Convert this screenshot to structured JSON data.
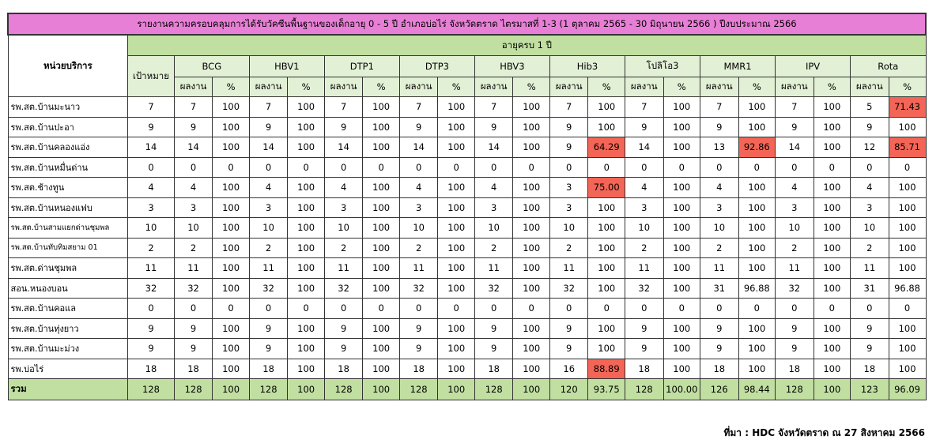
{
  "title": "รายงานความครอบคลุมการได้รับวัคซีนพื้นฐานของเด็กอายุ 0 - 5 ปี อำเภอบ่อไร่ จังหวัดตราด ไตรมาสที่ 1-3 (1 ตุลาคม 2565 - 30 มิถุนายน 2566 ) ปีงบประมาณ 2566",
  "unit_header": "หน่วยบริการ",
  "age_header": "อายุครบ 1 ปี",
  "target_header": "เป้าหมาย",
  "vaccines": [
    "BCG",
    "HBV1",
    "DTP1",
    "DTP3",
    "HBV3",
    "Hib3",
    "โปลิโอ3",
    "MMR1",
    "IPV",
    "Rota"
  ],
  "sub_headers": {
    "result": "ผลงาน",
    "percent": "%"
  },
  "highlight_color": "#f36556",
  "rows": [
    {
      "name": "รพ.สต.บ้านมะนาว",
      "target": "7",
      "cells": [
        [
          "7",
          "100"
        ],
        [
          "7",
          "100"
        ],
        [
          "7",
          "100"
        ],
        [
          "7",
          "100"
        ],
        [
          "7",
          "100"
        ],
        [
          "7",
          "100"
        ],
        [
          "7",
          "100"
        ],
        [
          "7",
          "100"
        ],
        [
          "7",
          "100"
        ],
        [
          "5",
          "71.43"
        ]
      ],
      "highlight": [
        9
      ]
    },
    {
      "name": "รพ.สต.บ้านปะอา",
      "target": "9",
      "cells": [
        [
          "9",
          "100"
        ],
        [
          "9",
          "100"
        ],
        [
          "9",
          "100"
        ],
        [
          "9",
          "100"
        ],
        [
          "9",
          "100"
        ],
        [
          "9",
          "100"
        ],
        [
          "9",
          "100"
        ],
        [
          "9",
          "100"
        ],
        [
          "9",
          "100"
        ],
        [
          "9",
          "100"
        ]
      ],
      "highlight": []
    },
    {
      "name": "รพ.สต.บ้านคลองแอ่ง",
      "target": "14",
      "cells": [
        [
          "14",
          "100"
        ],
        [
          "14",
          "100"
        ],
        [
          "14",
          "100"
        ],
        [
          "14",
          "100"
        ],
        [
          "14",
          "100"
        ],
        [
          "9",
          "64.29"
        ],
        [
          "14",
          "100"
        ],
        [
          "13",
          "92.86"
        ],
        [
          "14",
          "100"
        ],
        [
          "12",
          "85.71"
        ]
      ],
      "highlight": [
        5,
        7,
        9
      ]
    },
    {
      "name": "รพ.สต.บ้านหมื่นด่าน",
      "target": "0",
      "cells": [
        [
          "0",
          "0"
        ],
        [
          "0",
          "0"
        ],
        [
          "0",
          "0"
        ],
        [
          "0",
          "0"
        ],
        [
          "0",
          "0"
        ],
        [
          "0",
          "0"
        ],
        [
          "0",
          "0"
        ],
        [
          "0",
          "0"
        ],
        [
          "0",
          "0"
        ],
        [
          "0",
          "0"
        ]
      ],
      "highlight": []
    },
    {
      "name": "รพ.สต.ช้างทูน",
      "target": "4",
      "cells": [
        [
          "4",
          "100"
        ],
        [
          "4",
          "100"
        ],
        [
          "4",
          "100"
        ],
        [
          "4",
          "100"
        ],
        [
          "4",
          "100"
        ],
        [
          "3",
          "75.00"
        ],
        [
          "4",
          "100"
        ],
        [
          "4",
          "100"
        ],
        [
          "4",
          "100"
        ],
        [
          "4",
          "100"
        ]
      ],
      "highlight": [
        5
      ]
    },
    {
      "name": "รพ.สต.บ้านหนองแฟบ",
      "target": "3",
      "cells": [
        [
          "3",
          "100"
        ],
        [
          "3",
          "100"
        ],
        [
          "3",
          "100"
        ],
        [
          "3",
          "100"
        ],
        [
          "3",
          "100"
        ],
        [
          "3",
          "100"
        ],
        [
          "3",
          "100"
        ],
        [
          "3",
          "100"
        ],
        [
          "3",
          "100"
        ],
        [
          "3",
          "100"
        ]
      ],
      "highlight": []
    },
    {
      "name": "รพ.สต.บ้านสามแยกด่านชุมพล",
      "target": "10",
      "small": true,
      "cells": [
        [
          "10",
          "100"
        ],
        [
          "10",
          "100"
        ],
        [
          "10",
          "100"
        ],
        [
          "10",
          "100"
        ],
        [
          "10",
          "100"
        ],
        [
          "10",
          "100"
        ],
        [
          "10",
          "100"
        ],
        [
          "10",
          "100"
        ],
        [
          "10",
          "100"
        ],
        [
          "10",
          "100"
        ]
      ],
      "highlight": []
    },
    {
      "name": "รพ.สต.บ้านทับทิมสยาม 01",
      "target": "2",
      "small": true,
      "cells": [
        [
          "2",
          "100"
        ],
        [
          "2",
          "100"
        ],
        [
          "2",
          "100"
        ],
        [
          "2",
          "100"
        ],
        [
          "2",
          "100"
        ],
        [
          "2",
          "100"
        ],
        [
          "2",
          "100"
        ],
        [
          "2",
          "100"
        ],
        [
          "2",
          "100"
        ],
        [
          "2",
          "100"
        ]
      ],
      "highlight": []
    },
    {
      "name": "รพ.สต.ด่านชุมพล",
      "target": "11",
      "cells": [
        [
          "11",
          "100"
        ],
        [
          "11",
          "100"
        ],
        [
          "11",
          "100"
        ],
        [
          "11",
          "100"
        ],
        [
          "11",
          "100"
        ],
        [
          "11",
          "100"
        ],
        [
          "11",
          "100"
        ],
        [
          "11",
          "100"
        ],
        [
          "11",
          "100"
        ],
        [
          "11",
          "100"
        ]
      ],
      "highlight": []
    },
    {
      "name": "สอน.หนองบอน",
      "target": "32",
      "cells": [
        [
          "32",
          "100"
        ],
        [
          "32",
          "100"
        ],
        [
          "32",
          "100"
        ],
        [
          "32",
          "100"
        ],
        [
          "32",
          "100"
        ],
        [
          "32",
          "100"
        ],
        [
          "32",
          "100"
        ],
        [
          "31",
          "96.88"
        ],
        [
          "32",
          "100"
        ],
        [
          "31",
          "96.88"
        ]
      ],
      "highlight": []
    },
    {
      "name": "รพ.สต.บ้านคอแล",
      "target": "0",
      "cells": [
        [
          "0",
          "0"
        ],
        [
          "0",
          "0"
        ],
        [
          "0",
          "0"
        ],
        [
          "0",
          "0"
        ],
        [
          "0",
          "0"
        ],
        [
          "0",
          "0"
        ],
        [
          "0",
          "0"
        ],
        [
          "0",
          "0"
        ],
        [
          "0",
          "0"
        ],
        [
          "0",
          "0"
        ]
      ],
      "highlight": []
    },
    {
      "name": "รพ.สต.บ้านทุ่งยาว",
      "target": "9",
      "cells": [
        [
          "9",
          "100"
        ],
        [
          "9",
          "100"
        ],
        [
          "9",
          "100"
        ],
        [
          "9",
          "100"
        ],
        [
          "9",
          "100"
        ],
        [
          "9",
          "100"
        ],
        [
          "9",
          "100"
        ],
        [
          "9",
          "100"
        ],
        [
          "9",
          "100"
        ],
        [
          "9",
          "100"
        ]
      ],
      "highlight": []
    },
    {
      "name": "รพ.สต.บ้านมะม่วง",
      "target": "9",
      "cells": [
        [
          "9",
          "100"
        ],
        [
          "9",
          "100"
        ],
        [
          "9",
          "100"
        ],
        [
          "9",
          "100"
        ],
        [
          "9",
          "100"
        ],
        [
          "9",
          "100"
        ],
        [
          "9",
          "100"
        ],
        [
          "9",
          "100"
        ],
        [
          "9",
          "100"
        ],
        [
          "9",
          "100"
        ]
      ],
      "highlight": []
    },
    {
      "name": "รพ.บ่อไร่",
      "target": "18",
      "cells": [
        [
          "18",
          "100"
        ],
        [
          "18",
          "100"
        ],
        [
          "18",
          "100"
        ],
        [
          "18",
          "100"
        ],
        [
          "18",
          "100"
        ],
        [
          "16",
          "88.89"
        ],
        [
          "18",
          "100"
        ],
        [
          "18",
          "100"
        ],
        [
          "18",
          "100"
        ],
        [
          "18",
          "100"
        ]
      ],
      "highlight": [
        5
      ]
    }
  ],
  "total": {
    "name": "รวม",
    "target": "128",
    "cells": [
      [
        "128",
        "100"
      ],
      [
        "128",
        "100"
      ],
      [
        "128",
        "100"
      ],
      [
        "128",
        "100"
      ],
      [
        "128",
        "100"
      ],
      [
        "120",
        "93.75"
      ],
      [
        "128",
        "100.00"
      ],
      [
        "126",
        "98.44"
      ],
      [
        "128",
        "100"
      ],
      [
        "123",
        "96.09"
      ]
    ]
  },
  "source": "ที่มา : HDC จังหวัดตราด ณ 27 สิงหาคม 2566"
}
